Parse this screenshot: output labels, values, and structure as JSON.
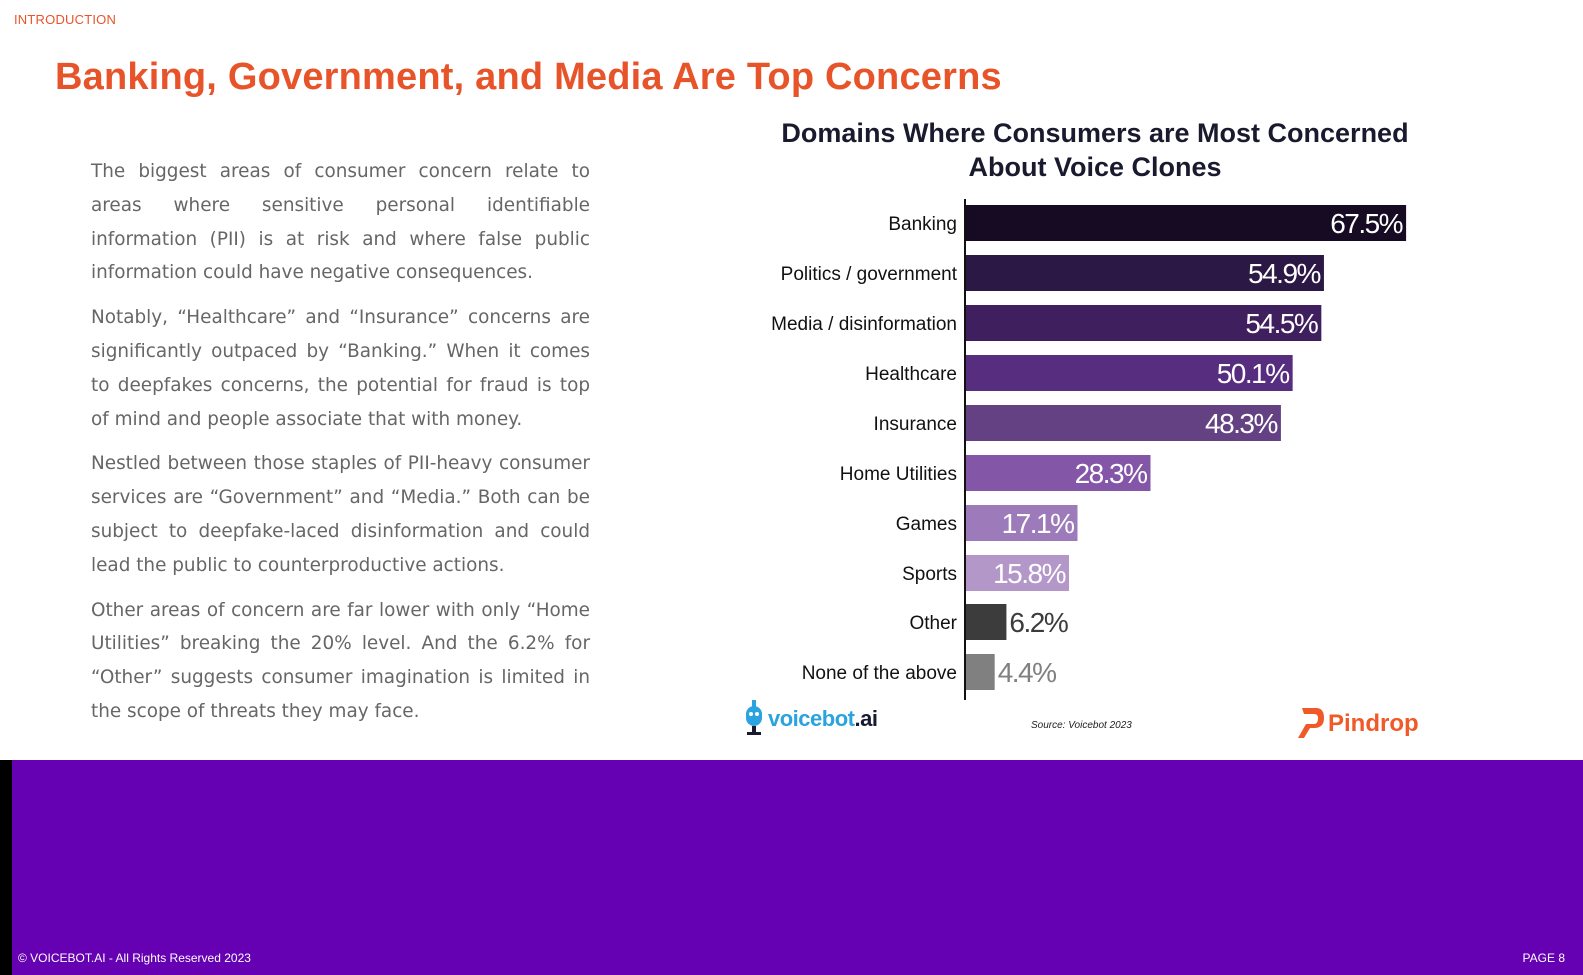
{
  "header": {
    "section": "INTRODUCTION",
    "title": "Banking, Government, and Media Are Top Concerns"
  },
  "body": {
    "paragraphs": [
      "The biggest areas of consumer concern relate to areas where sensitive personal identifiable information (PII) is at risk and where false public information could have negative consequences.",
      "Notably, “Healthcare” and “Insurance” concerns are significantly outpaced by “Banking.” When it comes to deepfakes concerns, the potential for fraud is top of mind and people associate that with money.",
      "Nestled between those staples of PII-heavy consumer services are “Government” and “Media.” Both can be subject to deepfake-laced disinformation and could lead the public to counterproductive actions.",
      "Other areas of concern are far lower with only “Home Utilities” breaking the 20% level. And the 6.2% for “Other” suggests consumer imagination is limited in the scope of threats they may face."
    ]
  },
  "chart_data": {
    "type": "bar",
    "orientation": "horizontal",
    "title": "Domains Where Consumers are Most Concerned About Voice Clones",
    "categories": [
      "Banking",
      "Politics / government",
      "Media / disinformation",
      "Healthcare",
      "Insurance",
      "Home Utilities",
      "Games",
      "Sports",
      "Other",
      "None of the above"
    ],
    "values": [
      67.5,
      54.9,
      54.5,
      50.1,
      48.3,
      28.3,
      17.1,
      15.8,
      6.2,
      4.4
    ],
    "value_labels": [
      "67.5%",
      "54.9%",
      "54.5%",
      "50.1%",
      "48.3%",
      "28.3%",
      "17.1%",
      "15.8%",
      "6.2%",
      "4.4%"
    ],
    "bar_colors": [
      "#160b22",
      "#2b1844",
      "#3f1f5e",
      "#572d7f",
      "#634182",
      "#8356a8",
      "#9d7bbb",
      "#b497c9",
      "#3c3c3c",
      "#808080"
    ],
    "label_colors": [
      "#ffffff",
      "#ffffff",
      "#ffffff",
      "#ffffff",
      "#ffffff",
      "#ffffff",
      "#ffffff",
      "#ffffff",
      "#3c3c3c",
      "#808080"
    ],
    "label_inside": [
      true,
      true,
      true,
      true,
      true,
      true,
      true,
      true,
      false,
      false
    ],
    "xlim": [
      0,
      70
    ],
    "grid": false,
    "legend": "none",
    "source": "Source: Voicebot 2023"
  },
  "logos": {
    "voicebot": "voicebot",
    "voicebot_ai": ".ai",
    "pindrop": "Pindrop"
  },
  "footer": {
    "copyright": "© VOICEBOT.AI - All Rights Reserved 2023",
    "page": "PAGE 8",
    "band_color": "#6600b3"
  }
}
